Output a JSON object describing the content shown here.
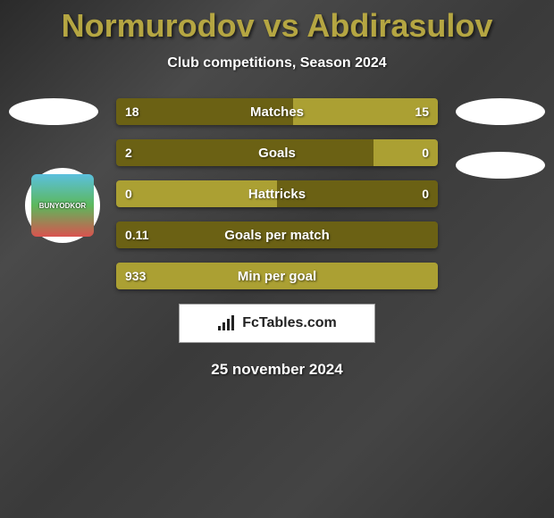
{
  "header": {
    "title": "Normurodov vs Abdirasulov",
    "subtitle": "Club competitions, Season 2024"
  },
  "club": {
    "name": "BUNYODKOR"
  },
  "stats": [
    {
      "label": "Matches",
      "left_val": "18",
      "right_val": "15",
      "left_pct": 55,
      "right_pct": 45,
      "left_color": "#6b6114",
      "right_color": "#aba033"
    },
    {
      "label": "Goals",
      "left_val": "2",
      "right_val": "0",
      "left_pct": 80,
      "right_pct": 20,
      "left_color": "#6b6114",
      "right_color": "#aba033"
    },
    {
      "label": "Hattricks",
      "left_val": "0",
      "right_val": "0",
      "left_pct": 50,
      "right_pct": 50,
      "left_color": "#aba033",
      "right_color": "#6b6114"
    },
    {
      "label": "Goals per match",
      "left_val": "0.11",
      "right_val": "",
      "left_pct": 100,
      "right_pct": 0,
      "left_color": "#6b6114",
      "right_color": "#aba033"
    },
    {
      "label": "Min per goal",
      "left_val": "933",
      "right_val": "",
      "left_pct": 100,
      "right_pct": 0,
      "left_color": "#aba033",
      "right_color": "#6b6114"
    }
  ],
  "brand": {
    "label": "FcTables.com"
  },
  "date": "25 november 2024",
  "colors": {
    "accent_title": "#b5a642",
    "bar_dark": "#6b6114",
    "bar_light": "#aba033",
    "text": "#ffffff"
  }
}
